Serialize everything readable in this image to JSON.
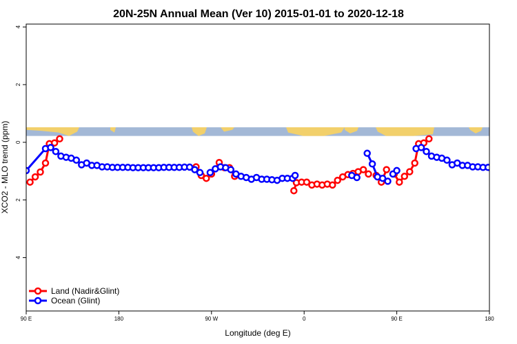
{
  "chart_data": {
    "type": "line",
    "title": "20N-25N Annual Mean (Ver 10)   2015-01-01 to 2020-12-18",
    "xlabel": "Longitude (deg E)",
    "ylabel": "XCO2 - MLO trend (ppm)",
    "xlim": [
      90,
      450
    ],
    "ylim": [
      -5.85,
      4.1
    ],
    "x_ticks": [
      {
        "value": 90,
        "label": "90 E"
      },
      {
        "value": 162,
        "label": "180"
      },
      {
        "value": 234,
        "label": "90 W"
      },
      {
        "value": 306,
        "label": "0"
      },
      {
        "value": 378,
        "label": "90 E"
      },
      {
        "value": 450,
        "label": "180"
      }
    ],
    "y_ticks": [
      {
        "value": 4,
        "label": "4"
      },
      {
        "value": 2,
        "label": "2"
      },
      {
        "value": 0,
        "label": "0"
      },
      {
        "value": -2,
        "label": "2"
      },
      {
        "value": -4,
        "label": "4"
      }
    ],
    "map_strip": {
      "ymin": 0.22,
      "ymax": 0.52,
      "ocean_color": "#a3b8d6",
      "land_color": "#f2d06b"
    },
    "legend": {
      "placement": "bottom-left"
    },
    "series": [
      {
        "name": "Land (Nadir&Glint)",
        "color": "#ff0000",
        "segments": [
          [
            [
              93,
              -1.38
            ],
            [
              97,
              -1.2
            ],
            [
              101,
              -1.03
            ],
            [
              105,
              -0.72
            ],
            [
              108,
              -0.05
            ],
            [
              112,
              -0.02
            ],
            [
              116,
              0.12
            ]
          ],
          [
            [
              222,
              -0.85
            ],
            [
              226,
              -1.15
            ],
            [
              230,
              -1.25
            ],
            [
              234,
              -1.1
            ],
            [
              240,
              -0.7
            ],
            [
              244,
              -0.88
            ],
            [
              248,
              -0.88
            ],
            [
              252,
              -1.18
            ]
          ],
          [
            [
              298,
              -1.68
            ],
            [
              300,
              -1.4
            ],
            [
              304,
              -1.38
            ],
            [
              308,
              -1.38
            ],
            [
              312,
              -1.48
            ],
            [
              316,
              -1.45
            ],
            [
              320,
              -1.48
            ],
            [
              324,
              -1.45
            ],
            [
              328,
              -1.48
            ],
            [
              332,
              -1.32
            ],
            [
              336,
              -1.2
            ],
            [
              340,
              -1.12
            ],
            [
              344,
              -1.08
            ],
            [
              348,
              -1.02
            ],
            [
              352,
              -0.95
            ],
            [
              356,
              -1.1
            ]
          ],
          [
            [
              362,
              -1.15
            ],
            [
              366,
              -1.38
            ],
            [
              370,
              -0.95
            ]
          ],
          [
            [
              376,
              -1.1
            ],
            [
              380,
              -1.38
            ],
            [
              384,
              -1.18
            ],
            [
              388,
              -1.02
            ],
            [
              392,
              -0.72
            ],
            [
              395,
              -0.05
            ],
            [
              399,
              -0.02
            ],
            [
              403,
              0.12
            ]
          ]
        ]
      },
      {
        "name": "Ocean (Glint)",
        "color": "#0000ff",
        "segments": [
          [
            [
              90,
              -0.98
            ],
            [
              105,
              -0.22
            ],
            [
              109,
              -0.18
            ],
            [
              113,
              -0.32
            ],
            [
              117,
              -0.48
            ],
            [
              121,
              -0.52
            ],
            [
              125,
              -0.55
            ],
            [
              129,
              -0.62
            ],
            [
              133,
              -0.78
            ],
            [
              137,
              -0.72
            ],
            [
              141,
              -0.8
            ],
            [
              145,
              -0.8
            ],
            [
              149,
              -0.85
            ],
            [
              153,
              -0.85
            ],
            [
              157,
              -0.87
            ],
            [
              161,
              -0.87
            ],
            [
              165,
              -0.87
            ],
            [
              169,
              -0.87
            ],
            [
              173,
              -0.88
            ],
            [
              177,
              -0.88
            ],
            [
              181,
              -0.88
            ],
            [
              185,
              -0.88
            ],
            [
              189,
              -0.88
            ],
            [
              193,
              -0.88
            ],
            [
              197,
              -0.87
            ],
            [
              201,
              -0.87
            ],
            [
              205,
              -0.87
            ],
            [
              209,
              -0.87
            ],
            [
              213,
              -0.86
            ],
            [
              217,
              -0.86
            ],
            [
              221,
              -0.95
            ],
            [
              225,
              -1.05
            ]
          ],
          [
            [
              233,
              -1.05
            ],
            [
              237,
              -0.92
            ],
            [
              241,
              -0.85
            ],
            [
              245,
              -0.88
            ],
            [
              249,
              -0.95
            ],
            [
              253,
              -1.1
            ],
            [
              257,
              -1.18
            ],
            [
              261,
              -1.22
            ],
            [
              265,
              -1.28
            ],
            [
              269,
              -1.22
            ],
            [
              273,
              -1.28
            ],
            [
              277,
              -1.28
            ],
            [
              281,
              -1.3
            ],
            [
              285,
              -1.32
            ],
            [
              289,
              -1.25
            ],
            [
              293,
              -1.25
            ],
            [
              297,
              -1.25
            ],
            [
              299,
              -1.15
            ]
          ],
          [
            [
              343,
              -1.15
            ],
            [
              347,
              -1.22
            ]
          ],
          [
            [
              355,
              -0.38
            ],
            [
              359,
              -0.75
            ],
            [
              363,
              -1.2
            ],
            [
              367,
              -1.25
            ],
            [
              371,
              -1.35
            ]
          ],
          [
            [
              375,
              -1.1
            ],
            [
              378,
              -0.98
            ]
          ],
          [
            [
              393,
              -0.22
            ],
            [
              397,
              -0.18
            ],
            [
              401,
              -0.32
            ],
            [
              405,
              -0.48
            ],
            [
              409,
              -0.52
            ],
            [
              413,
              -0.55
            ],
            [
              417,
              -0.62
            ],
            [
              421,
              -0.78
            ],
            [
              425,
              -0.72
            ],
            [
              429,
              -0.8
            ],
            [
              433,
              -0.8
            ],
            [
              437,
              -0.85
            ],
            [
              441,
              -0.85
            ],
            [
              445,
              -0.87
            ],
            [
              449,
              -0.87
            ]
          ]
        ]
      }
    ]
  }
}
